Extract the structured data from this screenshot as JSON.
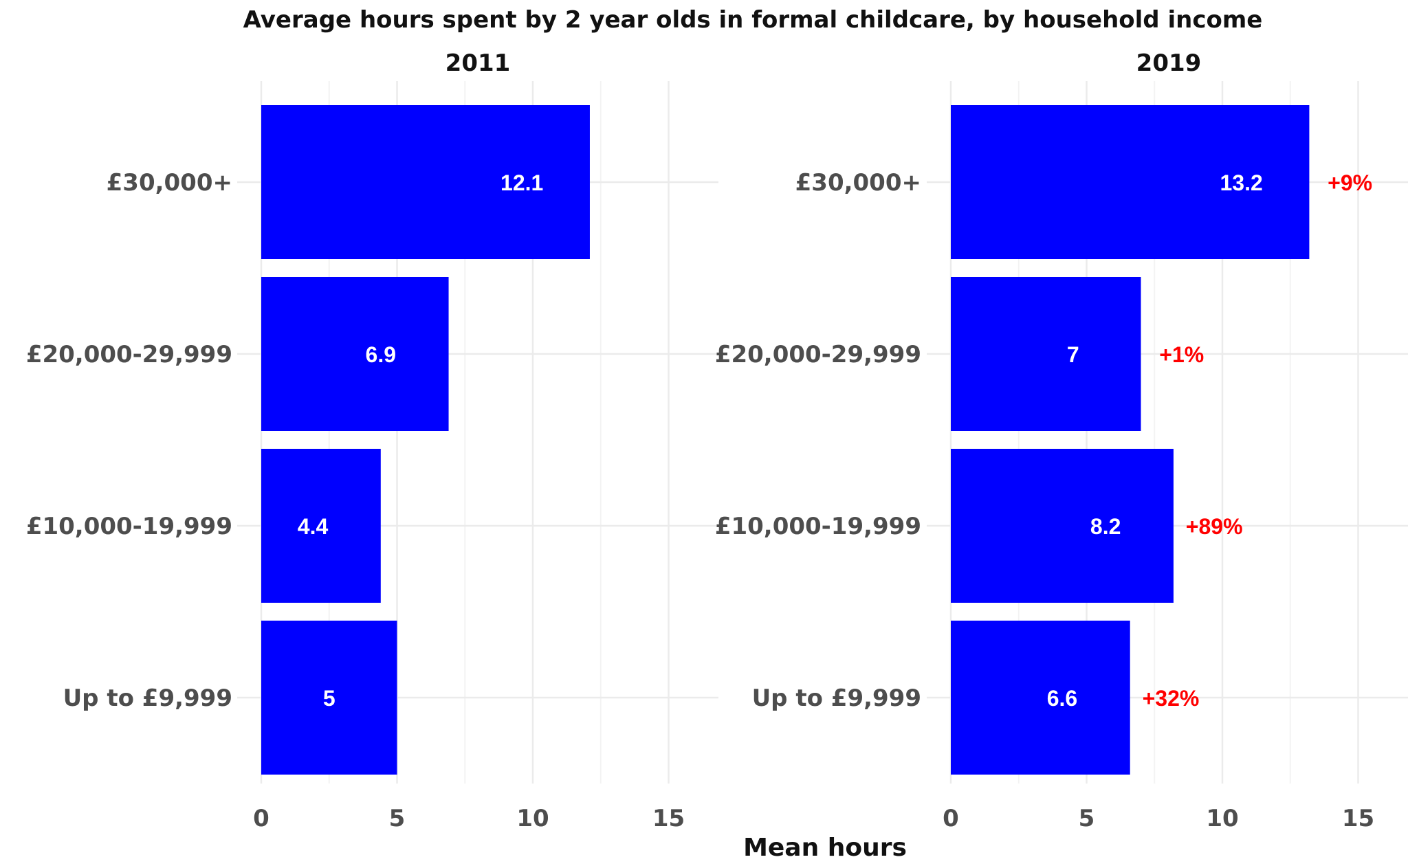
{
  "chart_data": {
    "type": "bar",
    "orientation": "horizontal",
    "title": "Average hours spent by 2 year olds in formal childcare, by household income",
    "xlabel": "Mean hours",
    "ylabel": "",
    "xlim": [
      0,
      16.5
    ],
    "x_ticks": [
      0,
      5,
      10,
      15
    ],
    "x_tick_labels": [
      "0",
      "5",
      "10",
      "15"
    ],
    "grid": true,
    "legend": "none",
    "categories": [
      "£30,000+",
      "£20,000-29,999",
      "£10,000-19,999",
      "Up to £9,999"
    ],
    "bar_color": "#0000ff",
    "change_color": "#ff0000",
    "panels": [
      {
        "name": "2011",
        "values": [
          12.1,
          6.9,
          4.4,
          5
        ],
        "value_labels": [
          "12.1",
          "6.9",
          "4.4",
          "5"
        ]
      },
      {
        "name": "2019",
        "values": [
          13.2,
          7,
          8.2,
          6.6
        ],
        "value_labels": [
          "13.2",
          "7",
          "8.2",
          "6.6"
        ],
        "change_labels": [
          "+9%",
          "+1%",
          "+89%",
          "+32%"
        ]
      }
    ]
  }
}
